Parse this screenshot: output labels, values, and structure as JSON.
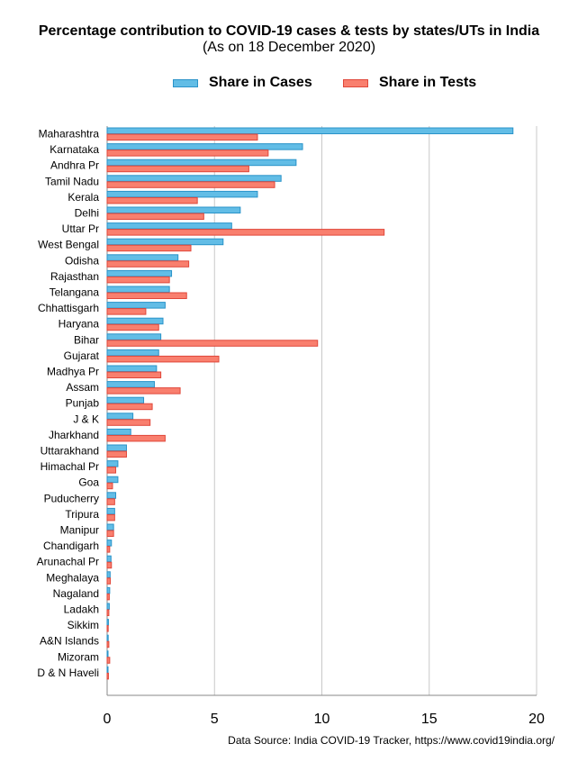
{
  "chart_data": {
    "type": "bar",
    "orientation": "horizontal",
    "title": "Percentage contribution to COVID-19 cases & tests by states/UTs in India",
    "subtitle": "(As on 18 December 2020)",
    "source": "Data Source: India COVID-19 Tracker, https://www.covid19india.org/",
    "legend_position": "top",
    "grid": true,
    "xlim": [
      0,
      20
    ],
    "xticks": [
      "0",
      "5",
      "10",
      "15",
      "20"
    ],
    "categories": [
      "Maharashtra",
      "Karnataka",
      "Andhra Pr",
      "Tamil Nadu",
      "Kerala",
      "Delhi",
      "Uttar Pr",
      "West Bengal",
      "Odisha",
      "Rajasthan",
      "Telangana",
      "Chhattisgarh",
      "Haryana",
      "Bihar",
      "Gujarat",
      "Madhya Pr",
      "Assam",
      "Punjab",
      "J & K",
      "Jharkhand",
      "Uttarakhand",
      "Himachal Pr",
      "Goa",
      "Puducherry",
      "Tripura",
      "Manipur",
      "Chandigarh",
      "Arunachal Pr",
      "Meghalaya",
      "Nagaland",
      "Ladakh",
      "Sikkim",
      "A&N Islands",
      "Mizoram",
      "D & N Haveli"
    ],
    "series": [
      {
        "name": "Share in Cases",
        "color": "#62bde6",
        "stroke": "#2a93c9",
        "values": [
          18.9,
          9.1,
          8.8,
          8.1,
          7.0,
          6.2,
          5.8,
          5.4,
          3.3,
          3.0,
          2.9,
          2.7,
          2.6,
          2.5,
          2.4,
          2.3,
          2.2,
          1.7,
          1.2,
          1.1,
          0.9,
          0.5,
          0.5,
          0.4,
          0.35,
          0.3,
          0.2,
          0.18,
          0.14,
          0.12,
          0.1,
          0.06,
          0.05,
          0.04,
          0.04
        ]
      },
      {
        "name": "Share in Tests",
        "color": "#f97f6e",
        "stroke": "#e0473a",
        "values": [
          7.0,
          7.5,
          6.6,
          7.8,
          4.2,
          4.5,
          12.9,
          3.9,
          3.8,
          2.9,
          3.7,
          1.8,
          2.4,
          9.8,
          5.2,
          2.5,
          3.4,
          2.1,
          2.0,
          2.7,
          0.9,
          0.4,
          0.25,
          0.35,
          0.35,
          0.3,
          0.12,
          0.2,
          0.15,
          0.1,
          0.08,
          0.05,
          0.08,
          0.12,
          0.06
        ]
      }
    ]
  }
}
